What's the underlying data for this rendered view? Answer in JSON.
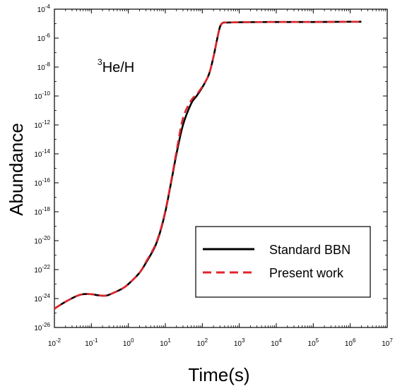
{
  "chart_data": {
    "type": "line",
    "title": "",
    "xlabel": "Time(s)",
    "ylabel": "Abundance",
    "x_scale": "log",
    "y_scale": "log",
    "xlim": [
      0.01,
      10000000
    ],
    "ylim": [
      1e-26,
      0.0001
    ],
    "x_ticks": [
      {
        "value": 0.01,
        "base": "10",
        "exp": "-2"
      },
      {
        "value": 0.1,
        "base": "10",
        "exp": "-1"
      },
      {
        "value": 1,
        "base": "10",
        "exp": "0"
      },
      {
        "value": 10,
        "base": "10",
        "exp": "1"
      },
      {
        "value": 100,
        "base": "10",
        "exp": "2"
      },
      {
        "value": 1000,
        "base": "10",
        "exp": "3"
      },
      {
        "value": 10000,
        "base": "10",
        "exp": "4"
      },
      {
        "value": 100000,
        "base": "10",
        "exp": "5"
      },
      {
        "value": 1000000,
        "base": "10",
        "exp": "6"
      },
      {
        "value": 10000000,
        "base": "10",
        "exp": "7"
      }
    ],
    "y_ticks": [
      {
        "value": 1e-26,
        "base": "10",
        "exp": "-26"
      },
      {
        "value": 1e-24,
        "base": "10",
        "exp": "-24"
      },
      {
        "value": 1e-22,
        "base": "10",
        "exp": "-22"
      },
      {
        "value": 1e-20,
        "base": "10",
        "exp": "-20"
      },
      {
        "value": 1e-18,
        "base": "10",
        "exp": "-18"
      },
      {
        "value": 1e-16,
        "base": "10",
        "exp": "-16"
      },
      {
        "value": 1e-14,
        "base": "10",
        "exp": "-14"
      },
      {
        "value": 1e-12,
        "base": "10",
        "exp": "-12"
      },
      {
        "value": 1e-10,
        "base": "10",
        "exp": "-10"
      },
      {
        "value": 1e-08,
        "base": "10",
        "exp": "-8"
      },
      {
        "value": 1e-06,
        "base": "10",
        "exp": "-6"
      },
      {
        "value": 0.0001,
        "base": "10",
        "exp": "-4"
      }
    ],
    "annotation": {
      "sup": "3",
      "text": "He/H"
    },
    "legend_position": "bottom-right",
    "grid": false,
    "series": [
      {
        "name": "Standard BBN",
        "color": "#000000",
        "dash": "solid",
        "x": [
          0.01,
          0.02,
          0.04,
          0.06,
          0.1,
          0.15,
          0.25,
          0.4,
          0.7,
          1,
          2,
          3,
          5,
          7,
          10,
          15,
          20,
          30,
          50,
          70,
          100,
          150,
          200,
          250,
          300,
          350,
          400,
          500,
          1000,
          10000,
          100000,
          1000000,
          2000000
        ],
        "y": [
          2e-25,
          6e-25,
          1.5e-24,
          2e-24,
          2e-24,
          1.7e-24,
          1.6e-24,
          2.5e-24,
          5e-24,
          1e-23,
          6e-23,
          3e-22,
          3e-21,
          3e-20,
          1e-18,
          2e-16,
          1e-14,
          1e-12,
          3e-11,
          1e-10,
          4e-10,
          3e-09,
          5e-08,
          8e-07,
          6e-06,
          1.1e-05,
          1.2e-05,
          1.2e-05,
          1.25e-05,
          1.3e-05,
          1.3e-05,
          1.35e-05,
          1.35e-05
        ]
      },
      {
        "name": "Present work",
        "color": "#e0242c",
        "dash": "dashed",
        "x": [
          0.01,
          0.02,
          0.04,
          0.06,
          0.1,
          0.15,
          0.25,
          0.4,
          0.7,
          1,
          2,
          3,
          5,
          7,
          10,
          15,
          20,
          30,
          50,
          70,
          100,
          150,
          200,
          250,
          300,
          350,
          400,
          500,
          1000,
          10000,
          100000,
          1000000,
          2000000
        ],
        "y": [
          2e-25,
          6e-25,
          1.5e-24,
          2e-24,
          2e-24,
          1.7e-24,
          1.6e-24,
          2.5e-24,
          5e-24,
          1e-23,
          6e-23,
          3.5e-22,
          3.5e-21,
          3.5e-20,
          1.2e-18,
          2.5e-16,
          1.5e-14,
          3e-12,
          5e-11,
          1.3e-10,
          4.5e-10,
          3e-09,
          5e-08,
          8e-07,
          6e-06,
          1.1e-05,
          1.2e-05,
          1.2e-05,
          1.25e-05,
          1.3e-05,
          1.3e-05,
          1.35e-05,
          1.35e-05
        ]
      }
    ]
  }
}
